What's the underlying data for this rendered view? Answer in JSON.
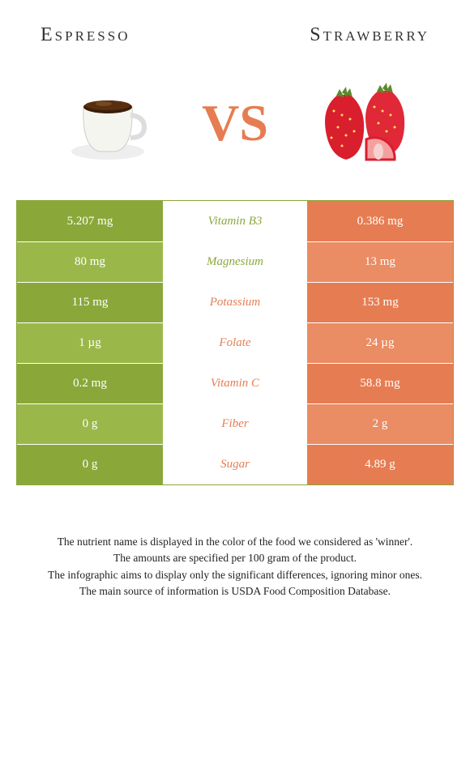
{
  "leftTitle": "Espresso",
  "rightTitle": "Strawberry",
  "vsLabel": "VS",
  "colors": {
    "left": "#8aa83a",
    "leftAlt": "#9ab84a",
    "mid": "#ffffff",
    "midText": {
      "left": "#8aa83a",
      "right": "#e67d52"
    },
    "right": "#e67d52",
    "rightAlt": "#ea8c64",
    "vs": "#e67d52"
  },
  "rows": [
    {
      "left": "5.207 mg",
      "mid": "Vitamin B3",
      "right": "0.386 mg",
      "winner": "left"
    },
    {
      "left": "80 mg",
      "mid": "Magnesium",
      "right": "13 mg",
      "winner": "left"
    },
    {
      "left": "115 mg",
      "mid": "Potassium",
      "right": "153 mg",
      "winner": "right"
    },
    {
      "left": "1 µg",
      "mid": "Folate",
      "right": "24 µg",
      "winner": "right"
    },
    {
      "left": "0.2 mg",
      "mid": "Vitamin C",
      "right": "58.8 mg",
      "winner": "right"
    },
    {
      "left": "0 g",
      "mid": "Fiber",
      "right": "2 g",
      "winner": "right"
    },
    {
      "left": "0 g",
      "mid": "Sugar",
      "right": "4.89 g",
      "winner": "right"
    }
  ],
  "footer": [
    "The nutrient name is displayed in the color of the food we considered as 'winner'.",
    "The amounts are specified per 100 gram of the product.",
    "The infographic aims to display only the significant differences, ignoring minor ones.",
    "The main source of information is USDA Food Composition Database."
  ]
}
